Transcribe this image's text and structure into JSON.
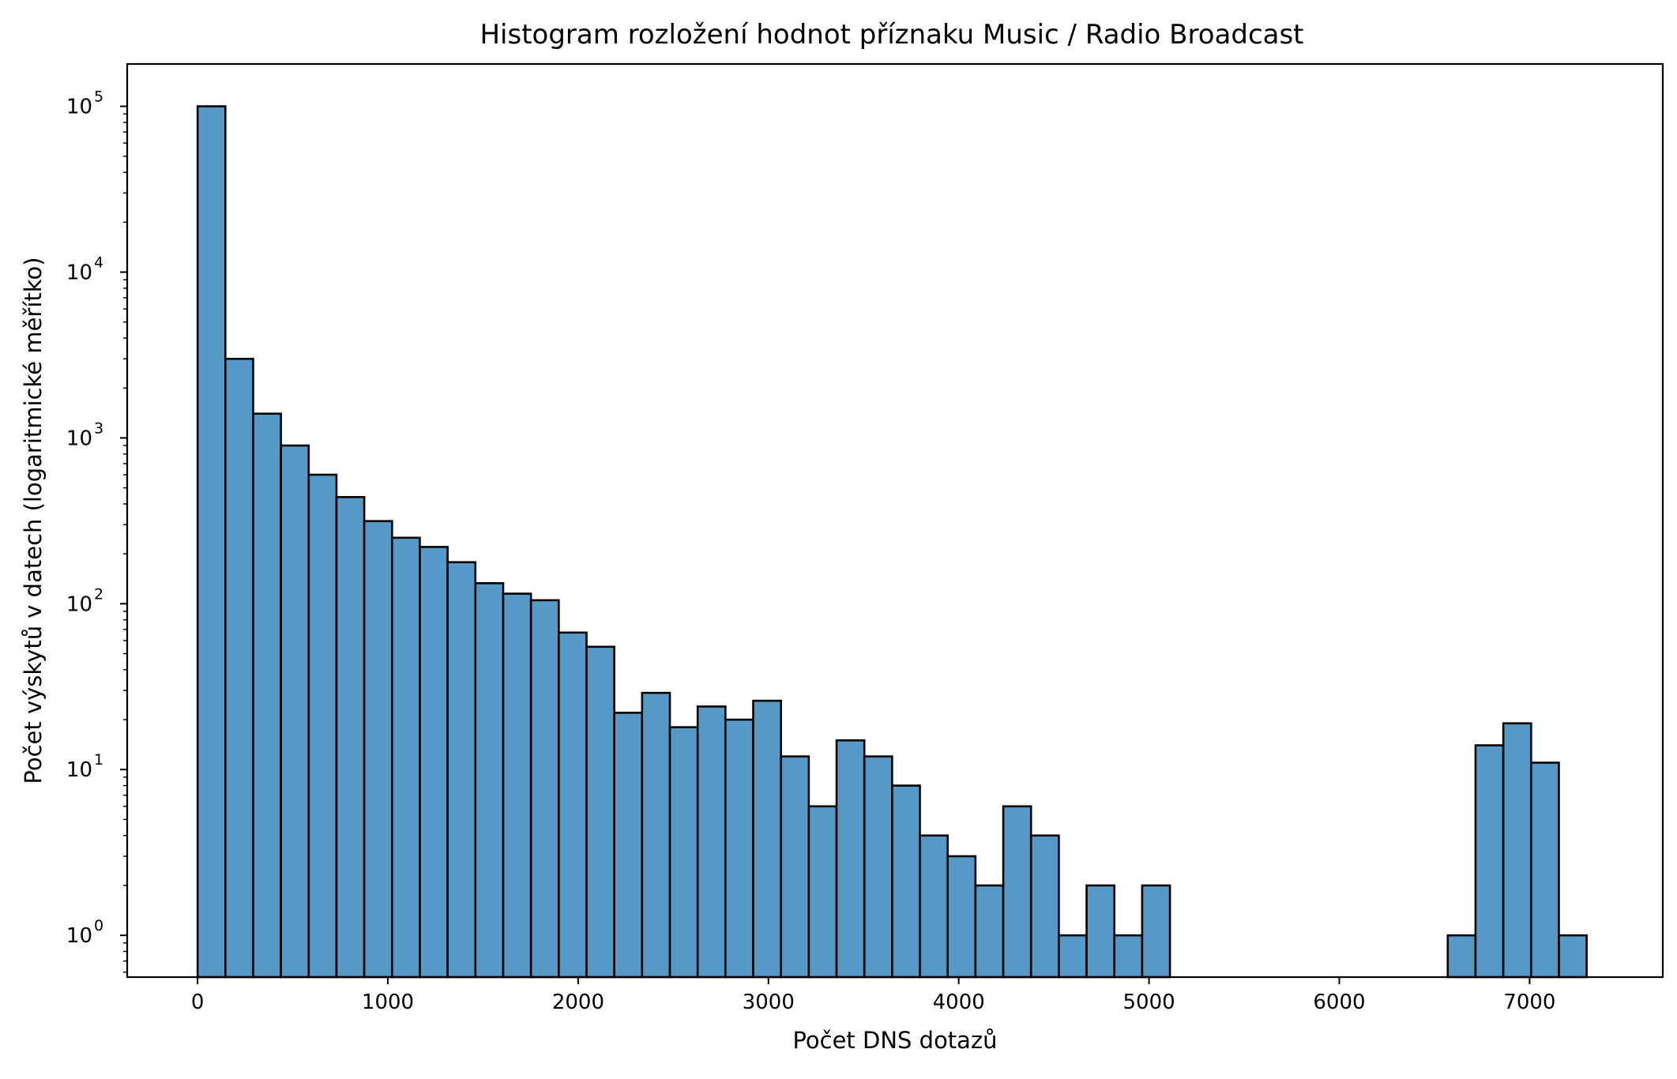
{
  "chart_data": {
    "type": "bar",
    "title": "Histogram rozložení hodnot příznaku Music / Radio Broadcast",
    "xlabel": "Počet DNS dotazů",
    "ylabel": "Počet výskytů v datech (logaritmické měřítko)",
    "yscale": "log",
    "xlim": [
      -370,
      7700
    ],
    "ylim": [
      0.56,
      180000
    ],
    "grid": false,
    "bar_color": "#5699c6",
    "edge_color": "#000000",
    "bin_width": 146,
    "xticks": [
      0,
      1000,
      2000,
      3000,
      4000,
      5000,
      6000,
      7000
    ],
    "xtick_labels": [
      "0",
      "1000",
      "2000",
      "3000",
      "4000",
      "5000",
      "6000",
      "7000"
    ],
    "yticks": [
      1,
      10,
      100,
      1000,
      10000,
      100000
    ],
    "ytick_labels": [
      {
        "base": "10",
        "exp": "0"
      },
      {
        "base": "10",
        "exp": "1"
      },
      {
        "base": "10",
        "exp": "2"
      },
      {
        "base": "10",
        "exp": "3"
      },
      {
        "base": "10",
        "exp": "4"
      },
      {
        "base": "10",
        "exp": "5"
      }
    ],
    "bins": [
      {
        "x": 0,
        "count": 100000
      },
      {
        "x": 146,
        "count": 3000
      },
      {
        "x": 292,
        "count": 1400
      },
      {
        "x": 438,
        "count": 900
      },
      {
        "x": 584,
        "count": 600
      },
      {
        "x": 730,
        "count": 440
      },
      {
        "x": 876,
        "count": 315
      },
      {
        "x": 1022,
        "count": 250
      },
      {
        "x": 1168,
        "count": 220
      },
      {
        "x": 1314,
        "count": 178
      },
      {
        "x": 1460,
        "count": 133
      },
      {
        "x": 1606,
        "count": 115
      },
      {
        "x": 1752,
        "count": 105
      },
      {
        "x": 1898,
        "count": 67
      },
      {
        "x": 2044,
        "count": 55
      },
      {
        "x": 2190,
        "count": 22
      },
      {
        "x": 2336,
        "count": 29
      },
      {
        "x": 2482,
        "count": 18
      },
      {
        "x": 2628,
        "count": 24
      },
      {
        "x": 2774,
        "count": 20
      },
      {
        "x": 2920,
        "count": 26
      },
      {
        "x": 3066,
        "count": 12
      },
      {
        "x": 3212,
        "count": 6
      },
      {
        "x": 3358,
        "count": 15
      },
      {
        "x": 3504,
        "count": 12
      },
      {
        "x": 3650,
        "count": 8
      },
      {
        "x": 3796,
        "count": 4
      },
      {
        "x": 3942,
        "count": 3
      },
      {
        "x": 4088,
        "count": 2
      },
      {
        "x": 4234,
        "count": 6
      },
      {
        "x": 4380,
        "count": 4
      },
      {
        "x": 4526,
        "count": 1
      },
      {
        "x": 4672,
        "count": 2
      },
      {
        "x": 4818,
        "count": 1
      },
      {
        "x": 4964,
        "count": 2
      },
      {
        "x": 6570,
        "count": 1
      },
      {
        "x": 6716,
        "count": 14
      },
      {
        "x": 6862,
        "count": 19
      },
      {
        "x": 7008,
        "count": 11
      },
      {
        "x": 7154,
        "count": 1
      }
    ]
  }
}
